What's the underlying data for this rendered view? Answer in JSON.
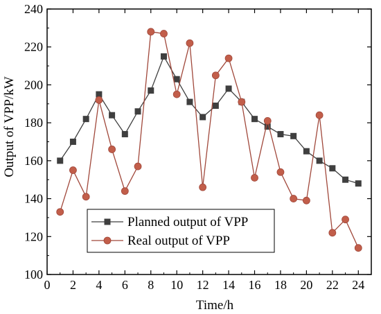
{
  "chart_data": {
    "type": "line",
    "xlabel": "Time/h",
    "ylabel": "Output of VPP/kW",
    "xlim": [
      0,
      25
    ],
    "ylim": [
      100,
      240
    ],
    "xticks": [
      0,
      2,
      4,
      6,
      8,
      10,
      12,
      14,
      16,
      18,
      20,
      22,
      24
    ],
    "yticks": [
      100,
      120,
      140,
      160,
      180,
      200,
      220,
      240
    ],
    "grid": false,
    "legend_position": "bottom-left",
    "x": [
      1,
      2,
      3,
      4,
      5,
      6,
      7,
      8,
      9,
      10,
      11,
      12,
      13,
      14,
      15,
      16,
      17,
      18,
      19,
      20,
      21,
      22,
      23,
      24
    ],
    "series": [
      {
        "name": "Planned output of VPP",
        "color": "#3f3f3f",
        "marker": "square",
        "values": [
          160,
          170,
          182,
          195,
          184,
          174,
          186,
          197,
          215,
          203,
          191,
          183,
          189,
          198,
          191,
          182,
          178,
          174,
          173,
          165,
          160,
          156,
          150,
          148
        ]
      },
      {
        "name": "Real output of VPP",
        "color": "#a0473a",
        "marker_fill": "#c25e4a",
        "marker": "circle",
        "values": [
          133,
          155,
          141,
          192,
          166,
          144,
          157,
          228,
          227,
          195,
          222,
          146,
          205,
          214,
          191,
          151,
          181,
          154,
          140,
          139,
          184,
          122,
          129,
          114
        ]
      }
    ]
  }
}
